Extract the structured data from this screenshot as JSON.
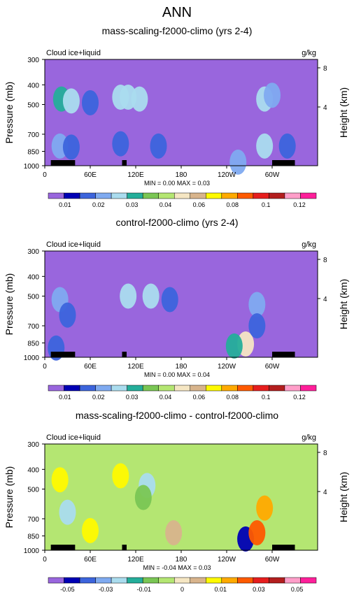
{
  "figure": {
    "title": "ANN"
  },
  "colors": {
    "background": "#9966dd",
    "seq_palette": [
      "#9966dd",
      "#0000b4",
      "#3c64dc",
      "#7faaf0",
      "#aadcee",
      "#24ae9a",
      "#7ac654",
      "#b4e672",
      "#f5e6c3",
      "#d8b48c",
      "#fffa00",
      "#ffaa00",
      "#ff5a00",
      "#e61e1e",
      "#b31e1e",
      "#ff9ec9",
      "#ff1f9a"
    ],
    "diff_palette": [
      "#9966dd",
      "#0000b4",
      "#3c64dc",
      "#7faaf0",
      "#aadcee",
      "#24ae9a",
      "#7ac654",
      "#b4e672",
      "#f5e6c3",
      "#d8b48c",
      "#fffa00",
      "#ffaa00",
      "#ff5a00",
      "#e61e1e",
      "#b31e1e",
      "#ff9ec9",
      "#ff1f9a"
    ]
  },
  "chart_data": [
    {
      "type": "heatmap",
      "title": "mass-scaling-f2000-climo (yrs 2-4)",
      "left_label": "Cloud ice+liquid",
      "unit_label": "g/kg",
      "ylabel": "Pressure (mb)",
      "y2label": "Height (km)",
      "yticks": [
        "300",
        "400",
        "500",
        "700",
        "850",
        "1000"
      ],
      "y2ticks": [
        "8",
        "4"
      ],
      "xticks": [
        "0",
        "60E",
        "120E",
        "180",
        "120W",
        "60W"
      ],
      "xlim": [
        0,
        360
      ],
      "stats": "MIN =   0.00   MAX =   0.03",
      "colorbar_labels": [
        "0.01",
        "0.02",
        "0.03",
        "0.04",
        "0.06",
        "0.08",
        "0.1",
        "0.12"
      ],
      "blobs": [
        {
          "lon": 22,
          "p": 470,
          "v": 0.026
        },
        {
          "lon": 35,
          "p": 480,
          "v": 0.02
        },
        {
          "lon": 100,
          "p": 460,
          "v": 0.022
        },
        {
          "lon": 110,
          "p": 460,
          "v": 0.02
        },
        {
          "lon": 125,
          "p": 470,
          "v": 0.022
        },
        {
          "lon": 60,
          "p": 490,
          "v": 0.012
        },
        {
          "lon": 290,
          "p": 470,
          "v": 0.024
        },
        {
          "lon": 300,
          "p": 450,
          "v": 0.018
        },
        {
          "lon": 20,
          "p": 800,
          "v": 0.015
        },
        {
          "lon": 35,
          "p": 810,
          "v": 0.014
        },
        {
          "lon": 100,
          "p": 780,
          "v": 0.012
        },
        {
          "lon": 150,
          "p": 800,
          "v": 0.01
        },
        {
          "lon": 290,
          "p": 800,
          "v": 0.02
        },
        {
          "lon": 320,
          "p": 800,
          "v": 0.011
        },
        {
          "lon": 255,
          "p": 960,
          "v": 0.016
        }
      ]
    },
    {
      "type": "heatmap",
      "title": "control-f2000-climo (yrs 2-4)",
      "left_label": "Cloud ice+liquid",
      "unit_label": "g/kg",
      "ylabel": "Pressure (mb)",
      "y2label": "Height (km)",
      "yticks": [
        "300",
        "400",
        "500",
        "700",
        "850",
        "1000"
      ],
      "y2ticks": [
        "8",
        "4"
      ],
      "xticks": [
        "0",
        "60E",
        "120E",
        "180",
        "120W",
        "60W"
      ],
      "xlim": [
        0,
        360
      ],
      "stats": "MIN =   0.00   MAX =   0.04",
      "colorbar_labels": [
        "0.01",
        "0.02",
        "0.03",
        "0.04",
        "0.06",
        "0.08",
        "0.1",
        "0.12"
      ],
      "blobs": [
        {
          "lon": 20,
          "p": 520,
          "v": 0.018
        },
        {
          "lon": 30,
          "p": 620,
          "v": 0.014
        },
        {
          "lon": 15,
          "p": 900,
          "v": 0.012
        },
        {
          "lon": 110,
          "p": 500,
          "v": 0.022
        },
        {
          "lon": 140,
          "p": 500,
          "v": 0.02
        },
        {
          "lon": 165,
          "p": 520,
          "v": 0.014
        },
        {
          "lon": 280,
          "p": 550,
          "v": 0.018
        },
        {
          "lon": 265,
          "p": 860,
          "v": 0.04
        },
        {
          "lon": 250,
          "p": 880,
          "v": 0.028
        },
        {
          "lon": 280,
          "p": 700,
          "v": 0.014
        }
      ]
    },
    {
      "type": "heatmap",
      "title": "mass-scaling-f2000-climo - control-f2000-climo",
      "left_label": "Cloud ice+liquid",
      "unit_label": "g/kg",
      "ylabel": "Pressure (mb)",
      "y2label": "Height (km)",
      "yticks": [
        "300",
        "400",
        "500",
        "700",
        "850",
        "1000"
      ],
      "y2ticks": [
        "8",
        "4"
      ],
      "xticks": [
        "0",
        "60E",
        "120E",
        "180",
        "120W",
        "60W"
      ],
      "xlim": [
        0,
        360
      ],
      "stats": "MIN =  -0.04   MAX =   0.03",
      "colorbar_labels": [
        "-0.05",
        "-0.03",
        "-0.01",
        "0",
        "0.01",
        "0.03",
        "0.05"
      ],
      "blobs": [
        {
          "lon": 20,
          "p": 450,
          "v": 0.012
        },
        {
          "lon": 100,
          "p": 430,
          "v": 0.008
        },
        {
          "lon": 135,
          "p": 480,
          "v": -0.02
        },
        {
          "lon": 130,
          "p": 550,
          "v": -0.01
        },
        {
          "lon": 30,
          "p": 650,
          "v": -0.018
        },
        {
          "lon": 265,
          "p": 880,
          "v": -0.035
        },
        {
          "lon": 290,
          "p": 620,
          "v": 0.016
        },
        {
          "lon": 280,
          "p": 820,
          "v": 0.022
        },
        {
          "lon": 60,
          "p": 800,
          "v": 0.008
        },
        {
          "lon": 170,
          "p": 820,
          "v": 0.006
        }
      ]
    }
  ]
}
